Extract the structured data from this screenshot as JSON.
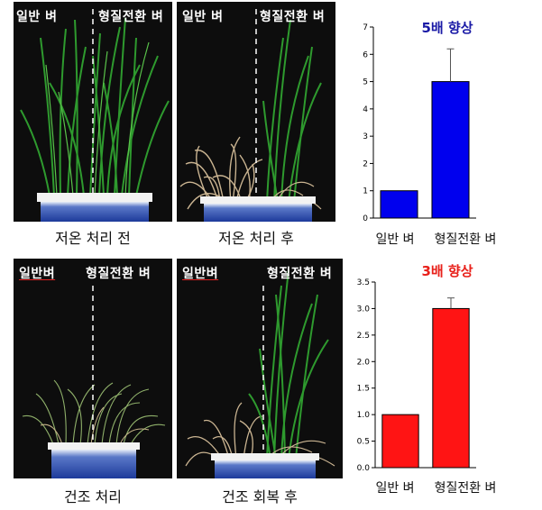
{
  "row1": {
    "panel_left": {
      "label_left": "일반 벼",
      "label_right": "형질전환 벼",
      "caption": "저온 처리 전"
    },
    "panel_right": {
      "label_left": "일반 벼",
      "label_right": "형질전환 벼",
      "caption": "저온 처리 후"
    }
  },
  "row2": {
    "panel_left": {
      "label_left": "일반벼",
      "label_right": "형질전환 벼",
      "caption": "건조 처리"
    },
    "panel_right": {
      "label_left": "일반벼",
      "label_right": "형질전환 벼",
      "caption": "건조 회복 후"
    }
  },
  "chart_data": [
    {
      "type": "bar",
      "title": "5배 향상",
      "categories": [
        "일반 벼",
        "형질전환 벼"
      ],
      "values": [
        1,
        5
      ],
      "errors": [
        0,
        1.2
      ],
      "ylim": [
        0,
        7
      ],
      "yticks": [
        "0",
        "1",
        "2",
        "3",
        "4",
        "5",
        "6",
        "7"
      ],
      "bar_color": "#0000ee",
      "title_color": "#1a1aa6"
    },
    {
      "type": "bar",
      "title": "3배 향상",
      "categories": [
        "일반 벼",
        "형질전환 벼"
      ],
      "values": [
        1.0,
        3.0
      ],
      "errors": [
        0,
        0.2
      ],
      "ylim": [
        0,
        3.5
      ],
      "yticks": [
        "0.0",
        "0.5",
        "1.0",
        "1.5",
        "2.0",
        "2.5",
        "3.0",
        "3.5"
      ],
      "bar_color": "#ff1414",
      "title_color": "#e8201a"
    }
  ]
}
